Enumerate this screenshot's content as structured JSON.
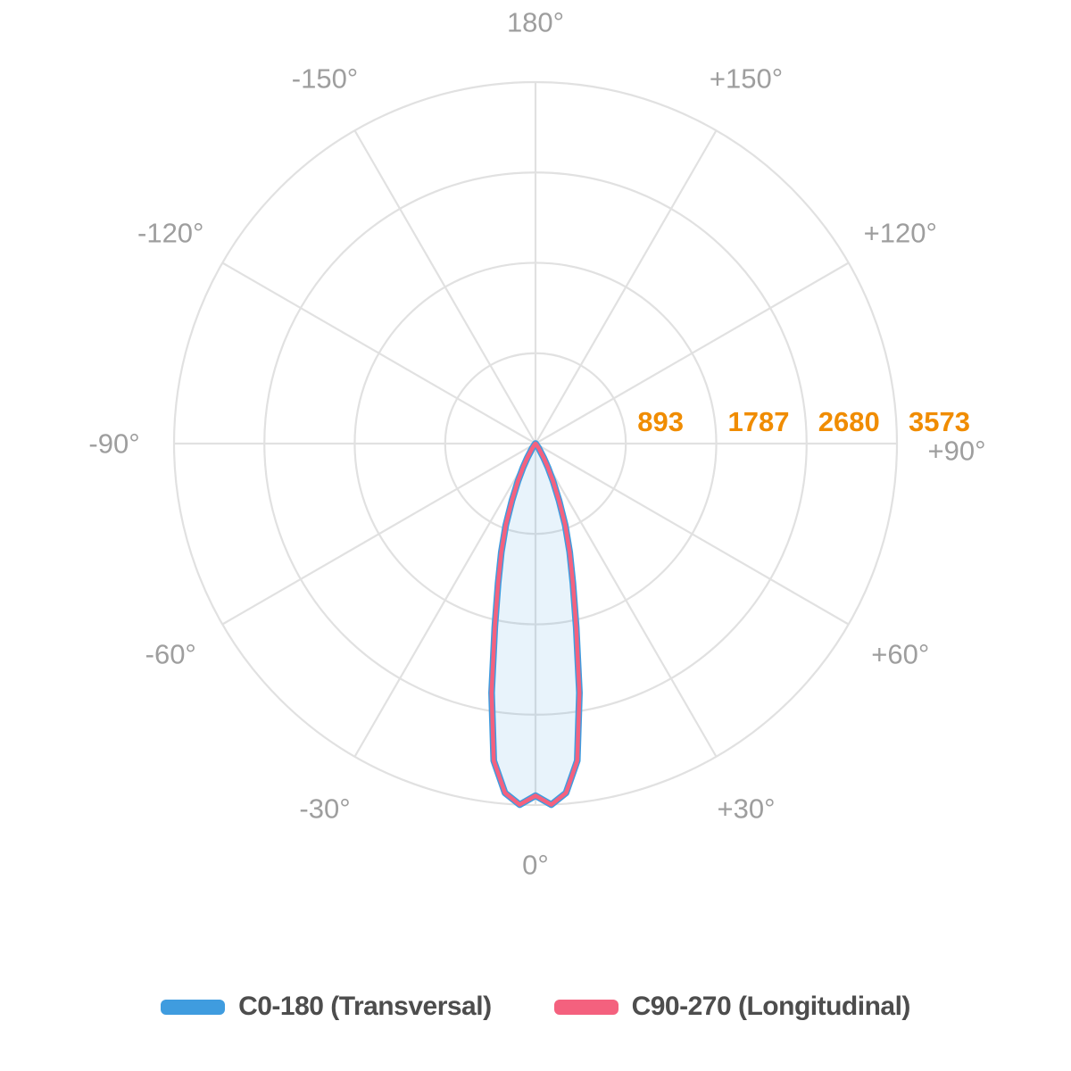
{
  "chart": {
    "grid_color": "#E1E1E1",
    "angle_label_color": "#9E9E9E",
    "candela_label_color": "#F08C00",
    "beam_fill_color": "rgba(63,156,223,0.12)",
    "angle_labels": [
      {
        "angle": 180,
        "label": "180°"
      },
      {
        "angle": -150,
        "label": "-150°"
      },
      {
        "angle": 150,
        "label": "+150°"
      },
      {
        "angle": -120,
        "label": "-120°"
      },
      {
        "angle": 120,
        "label": "+120°"
      },
      {
        "angle": -90,
        "label": "-90°"
      },
      {
        "angle": 90,
        "label": "+90°"
      },
      {
        "angle": -60,
        "label": "-60°"
      },
      {
        "angle": 60,
        "label": "+60°"
      },
      {
        "angle": -30,
        "label": "-30°"
      },
      {
        "angle": 30,
        "label": "+30°"
      },
      {
        "angle": 0,
        "label": "0°"
      }
    ]
  },
  "chart_data": {
    "type": "line",
    "subtype": "polar-photometric",
    "title": "",
    "radial_axis": {
      "ticks": [
        893,
        1787,
        2680,
        3573
      ],
      "tick_labels": [
        "893",
        "1787",
        "2680",
        "3573"
      ],
      "max": 3573,
      "min": 0
    },
    "angle_axis": {
      "tick_step_deg": 30,
      "range_deg": [
        -180,
        180
      ],
      "zero_position": "bottom"
    },
    "angles_deg": [
      -90,
      -60,
      -55,
      -50,
      -45,
      -40,
      -35,
      -30,
      -27.5,
      -25,
      -22.5,
      -20,
      -17.5,
      -15,
      -12.5,
      -10,
      -7.5,
      -5,
      -2.5,
      0,
      2.5,
      5,
      7.5,
      10,
      12.5,
      15,
      17.5,
      20,
      22.5,
      25,
      27.5,
      30,
      35,
      40,
      45,
      50,
      55,
      60,
      90
    ],
    "series": [
      {
        "name": "C0-180 (Transversal)",
        "color": "#3F9CDF",
        "values": [
          0,
          0,
          0,
          2,
          7,
          18,
          54,
          161,
          265,
          411,
          607,
          858,
          1125,
          1429,
          1858,
          2501,
          3162,
          3466,
          3573,
          3480,
          3573,
          3466,
          3162,
          2501,
          1858,
          1429,
          1125,
          858,
          607,
          411,
          265,
          161,
          54,
          18,
          7,
          2,
          0,
          0,
          0
        ]
      },
      {
        "name": "C90-270 (Longitudinal)",
        "color": "#F4617E",
        "values": [
          0,
          0,
          0,
          2,
          7,
          18,
          54,
          161,
          265,
          411,
          607,
          858,
          1125,
          1429,
          1858,
          2501,
          3162,
          3466,
          3573,
          3480,
          3573,
          3466,
          3162,
          2501,
          1858,
          1429,
          1125,
          858,
          607,
          411,
          265,
          161,
          54,
          18,
          7,
          2,
          0,
          0,
          0
        ]
      }
    ],
    "legend_position": "bottom",
    "grid": true
  },
  "legend": {
    "items": [
      {
        "label": "C0-180 (Transversal)",
        "color": "#3F9CDF"
      },
      {
        "label": "C90-270 (Longitudinal)",
        "color": "#F4617E"
      }
    ]
  }
}
